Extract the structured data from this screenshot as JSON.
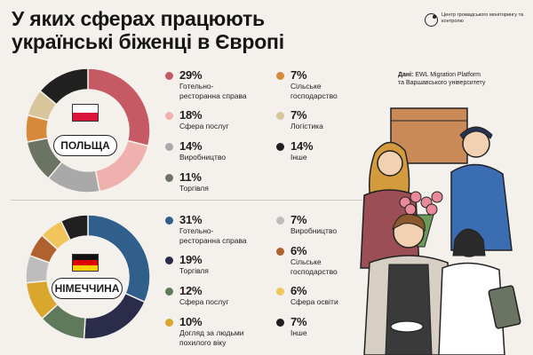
{
  "header": {
    "title_line1": "У яких сферах працюють",
    "title_line2": "українські біженці в Європі",
    "logo_text": "Центр громадського моніторингу та контролю",
    "source_label": "Дані:",
    "source_line1": "EWL Migration Platform",
    "source_line2": "та Варшавського університету"
  },
  "icons": {
    "logo": "monitoring-center-logo-icon",
    "pl_flag": "poland-flag-icon",
    "de_flag": "germany-flag-icon",
    "illustration": "workers-illustration"
  },
  "chart_data": [
    {
      "type": "pie",
      "title": "ПОЛЬЩА",
      "categories": [
        "Готельно-ресторанна справа",
        "Сфера послуг",
        "Виробництво",
        "Торгівля",
        "Сільське господарство",
        "Логістика",
        "Інше"
      ],
      "values": [
        29,
        18,
        14,
        11,
        7,
        7,
        14
      ],
      "colors": [
        "#c55a64",
        "#efb1ad",
        "#a9a9a9",
        "#6b7363",
        "#d6893a",
        "#d7c59b",
        "#202020"
      ],
      "legend": [
        {
          "pct": "29%",
          "line1": "Готельно-",
          "line2": "ресторанна справа"
        },
        {
          "pct": "18%",
          "line1": "Сфера послуг",
          "line2": ""
        },
        {
          "pct": "14%",
          "line1": "Виробництво",
          "line2": ""
        },
        {
          "pct": "11%",
          "line1": "Торгівля",
          "line2": ""
        },
        {
          "pct": "7%",
          "line1": "Сільське",
          "line2": "господарство"
        },
        {
          "pct": "7%",
          "line1": "Логістика",
          "line2": ""
        },
        {
          "pct": "14%",
          "line1": "Інше",
          "line2": ""
        }
      ]
    },
    {
      "type": "pie",
      "title": "НІМЕЧЧИНА",
      "categories": [
        "Готельно-ресторанна справа",
        "Торгівля",
        "Сфера послуг",
        "Догляд за людьми похилого віку",
        "Виробництво",
        "Сільське господарство",
        "Сфера освіти",
        "Інше"
      ],
      "values": [
        31,
        19,
        12,
        10,
        7,
        6,
        6,
        7
      ],
      "colors": [
        "#2f5f8a",
        "#2b2b4a",
        "#5e7a5a",
        "#d9a62e",
        "#bdbdbd",
        "#b0622e",
        "#f2c55c",
        "#202020"
      ],
      "legend": [
        {
          "pct": "31%",
          "line1": "Готельно-",
          "line2": "ресторанна справа"
        },
        {
          "pct": "19%",
          "line1": "Торгівля",
          "line2": ""
        },
        {
          "pct": "12%",
          "line1": "Сфера послуг",
          "line2": ""
        },
        {
          "pct": "10%",
          "line1": "Догляд за людьми",
          "line2": "похилого віку"
        },
        {
          "pct": "7%",
          "line1": "Виробництво",
          "line2": ""
        },
        {
          "pct": "6%",
          "line1": "Сільське",
          "line2": "господарство"
        },
        {
          "pct": "6%",
          "line1": "Сфера освіти",
          "line2": ""
        },
        {
          "pct": "7%",
          "line1": "Інше",
          "line2": ""
        }
      ]
    }
  ]
}
